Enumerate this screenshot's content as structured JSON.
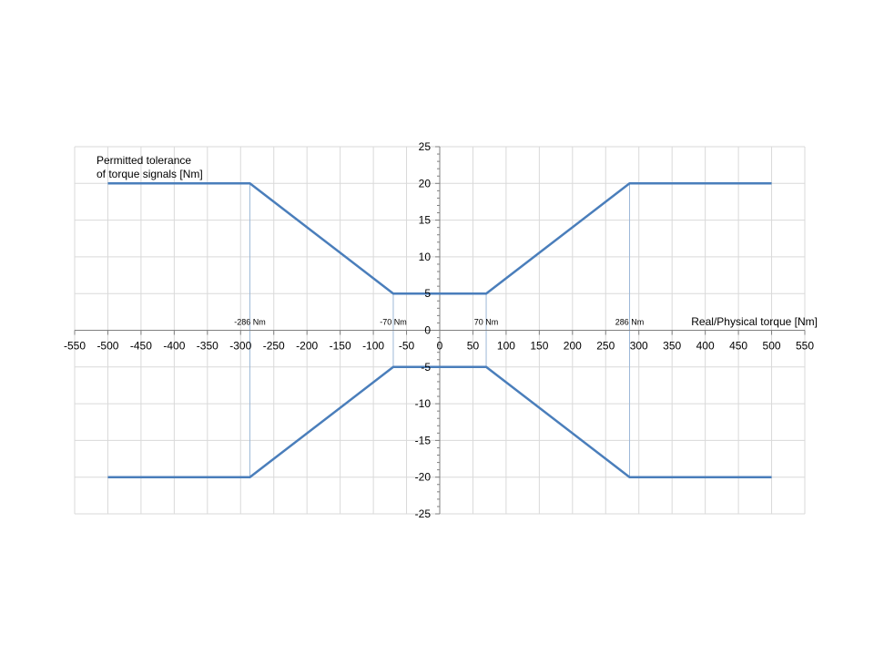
{
  "chart_data": {
    "type": "line",
    "title": "",
    "ylabel_lines": [
      "Permitted tolerance",
      "of torque signals [Nm]"
    ],
    "xlabel": "Real/Physical torque [Nm]",
    "xlim": [
      -550,
      550
    ],
    "ylim": [
      -25,
      25
    ],
    "x_major_step": 50,
    "y_major_step": 5,
    "y_minor_step": 1,
    "x_ticks": [
      -550,
      -500,
      -450,
      -400,
      -350,
      -300,
      -250,
      -200,
      -150,
      -100,
      -50,
      0,
      50,
      100,
      150,
      200,
      250,
      300,
      350,
      400,
      450,
      500,
      550
    ],
    "y_ticks": [
      25,
      20,
      15,
      10,
      5,
      0,
      -5,
      -10,
      -15,
      -20,
      -25
    ],
    "grid": true,
    "series": [
      {
        "color": "#4a7ebb",
        "x": [
          -500,
          -286,
          -70,
          70,
          286,
          500
        ],
        "y": [
          20,
          20,
          5,
          5,
          20,
          20
        ]
      },
      {
        "color": "#4a7ebb",
        "x": [
          -500,
          -286,
          -70,
          70,
          286,
          500
        ],
        "y": [
          -20,
          -20,
          -5,
          -5,
          -20,
          -20
        ]
      }
    ],
    "reference_lines": [
      {
        "x": -286,
        "y_range": [
          -20,
          20
        ],
        "label": "-286 Nm"
      },
      {
        "x": -70,
        "y_range": [
          -5,
          5
        ],
        "label": "-70 Nm"
      },
      {
        "x": 70,
        "y_range": [
          -5,
          5
        ],
        "label": "70 Nm"
      },
      {
        "x": 286,
        "y_range": [
          -20,
          20
        ],
        "label": "286 Nm"
      }
    ],
    "colors": {
      "line": "#4a7ebb",
      "reference": "#9db8d8",
      "grid": "#d9d9d9",
      "axis": "#808080"
    }
  }
}
